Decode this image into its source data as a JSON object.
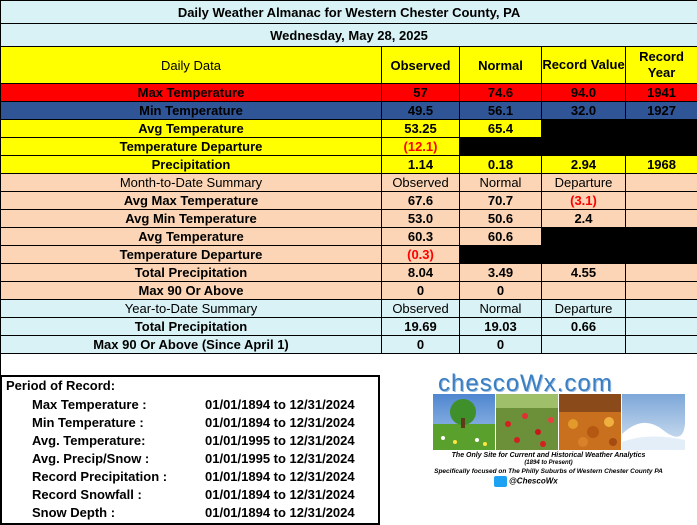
{
  "title": "Daily Weather Almanac for Western Chester County, PA",
  "date": "Wednesday, May 28, 2025",
  "daily": {
    "header": {
      "label": "Daily Data",
      "observed": "Observed",
      "normal": "Normal",
      "record_value": "Record Value",
      "record_year": "Record Year"
    },
    "max_temp": {
      "label": "Max Temperature",
      "observed": "57",
      "normal": "74.6",
      "record_value": "94.0",
      "record_year": "1941"
    },
    "min_temp": {
      "label": "Min Temperature",
      "observed": "49.5",
      "normal": "56.1",
      "record_value": "32.0",
      "record_year": "1927"
    },
    "avg_temp": {
      "label": "Avg Temperature",
      "observed": "53.25",
      "normal": "65.4"
    },
    "temp_departure": {
      "label": "Temperature Departure",
      "observed": "(12.1)"
    },
    "precip": {
      "label": "Precipitation",
      "observed": "1.14",
      "normal": "0.18",
      "record_value": "2.94",
      "record_year": "1968"
    }
  },
  "mtd": {
    "header": {
      "label": "Month-to-Date Summary",
      "observed": "Observed",
      "normal": "Normal",
      "departure": "Departure"
    },
    "rows": [
      {
        "label": "Avg Max Temperature",
        "observed": "67.6",
        "normal": "70.7",
        "departure": "(3.1)"
      },
      {
        "label": "Avg Min Temperature",
        "observed": "53.0",
        "normal": "50.6",
        "departure": "2.4"
      },
      {
        "label": "Avg Temperature",
        "observed": "60.3",
        "normal": "60.6"
      },
      {
        "label": "Temperature Departure",
        "observed": "(0.3)"
      },
      {
        "label": "Total Precipitation",
        "observed": "8.04",
        "normal": "3.49",
        "departure": "4.55"
      },
      {
        "label": "Max 90 Or Above",
        "observed": "0",
        "normal": "0"
      }
    ]
  },
  "ytd": {
    "header": {
      "label": "Year-to-Date Summary",
      "observed": "Observed",
      "normal": "Normal",
      "departure": "Departure"
    },
    "rows": [
      {
        "label": "Total Precipitation",
        "observed": "19.69",
        "normal": "19.03",
        "departure": "0.66"
      },
      {
        "label": "Max 90 Or Above (Since April 1)",
        "observed": "0",
        "normal": "0"
      }
    ]
  },
  "period_of_record": {
    "heading": "Period of Record:",
    "items": [
      {
        "label": "Max Temperature :",
        "range": "01/01/1894 to 12/31/2024"
      },
      {
        "label": "Min Temperature :",
        "range": "01/01/1894 to 12/31/2024"
      },
      {
        "label": "Avg. Temperature:",
        "range": "01/01/1995 to 12/31/2024"
      },
      {
        "label": "Avg. Precip/Snow :",
        "range": "01/01/1995 to 12/31/2024"
      },
      {
        "label": "Record Precipitation :",
        "range": "01/01/1894 to 12/31/2024"
      },
      {
        "label": "Record Snowfall :",
        "range": "01/01/1894 to 12/31/2024"
      },
      {
        "label": "Snow Depth :",
        "range": "01/01/1894 to 12/31/2024"
      }
    ]
  },
  "logo": {
    "brand": "chescoWx.com",
    "tagline": "The Only Site for Current and Historical Weather Analytics",
    "years": "(1894 to Present)",
    "focus": "Specifically focused on The Philly Suburbs of Western Chester County PA",
    "twitter": "@ChescoWx"
  },
  "colors": {
    "max": "#ff0000",
    "min": "#2f5597",
    "highlight": "#ffff00",
    "peach": "#fbd5b5",
    "cyan": "#d9f2f5",
    "negative": "#ff0000"
  }
}
